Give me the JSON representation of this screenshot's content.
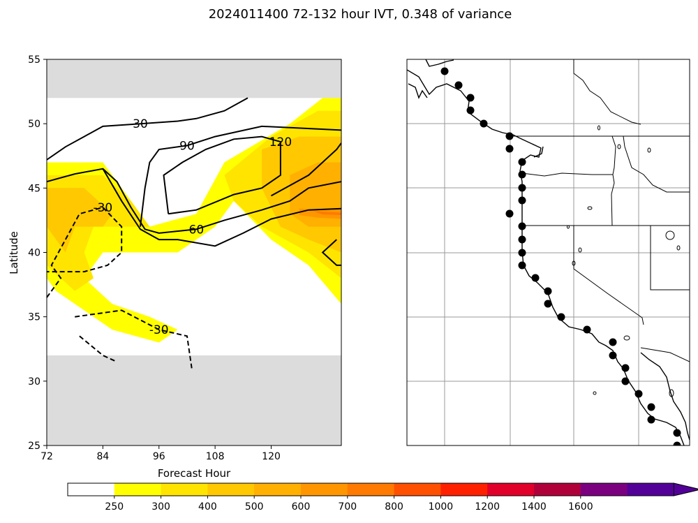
{
  "figure": {
    "title": "2024011400 72-132 hour IVT, 0.348 of variance"
  },
  "chart_data": [
    {
      "type": "contour",
      "xlabel": "Forecast Hour",
      "ylabel": "Latitude",
      "xlim": [
        72,
        135
      ],
      "ylim": [
        25,
        55
      ],
      "xticks": [
        "72",
        "84",
        "96",
        "108",
        "120"
      ],
      "yticks": [
        "25",
        "30",
        "35",
        "40",
        "45",
        "50",
        "55"
      ],
      "masked_regions": [
        {
          "lat_from": 52,
          "lat_to": 55,
          "color": "#dcdcdc"
        },
        {
          "lat_from": 25,
          "lat_to": 32,
          "color": "#dcdcdc"
        }
      ],
      "filled_ivt": [
        {
          "level": 250,
          "color": "#ffff00",
          "polygon": [
            [
              72,
              47
            ],
            [
              84,
              47
            ],
            [
              94,
              42
            ],
            [
              104,
              43
            ],
            [
              110,
              47
            ],
            [
              124,
              50
            ],
            [
              131,
              52
            ],
            [
              135,
              52
            ],
            [
              135,
              36
            ],
            [
              128,
              39
            ],
            [
              120,
              41
            ],
            [
              112,
              44
            ],
            [
              108,
              42
            ],
            [
              100,
              40
            ],
            [
              92,
              40
            ],
            [
              84,
              40
            ],
            [
              80,
              38
            ],
            [
              86,
              36
            ],
            [
              94,
              35
            ],
            [
              100,
              34
            ],
            [
              96,
              33
            ],
            [
              86,
              34
            ],
            [
              78,
              36
            ],
            [
              74,
              37
            ],
            [
              72,
              38
            ]
          ]
        },
        {
          "level": 300,
          "color": "#ffe400",
          "polygon": [
            [
              72,
              46
            ],
            [
              84,
              46
            ],
            [
              90,
              44
            ],
            [
              94,
              42
            ],
            [
              90,
              42
            ],
            [
              82,
              42
            ],
            [
              80,
              40
            ],
            [
              82,
              38
            ],
            [
              78,
              37
            ],
            [
              72,
              39
            ]
          ]
        },
        {
          "level": 300,
          "color": "#ffe400",
          "polygon": [
            [
              110,
              46
            ],
            [
              120,
              49
            ],
            [
              130,
              51
            ],
            [
              135,
              51
            ],
            [
              135,
              38
            ],
            [
              128,
              40
            ],
            [
              118,
              42
            ],
            [
              112,
              44
            ]
          ]
        },
        {
          "level": 400,
          "color": "#ffc800",
          "polygon": [
            [
              72,
              45
            ],
            [
              80,
              45
            ],
            [
              86,
              43
            ],
            [
              84,
              42
            ],
            [
              78,
              42
            ],
            [
              76,
              40
            ],
            [
              74,
              41
            ],
            [
              72,
              42
            ]
          ]
        },
        {
          "level": 400,
          "color": "#ffc800",
          "polygon": [
            [
              118,
              48
            ],
            [
              126,
              49
            ],
            [
              132,
              49
            ],
            [
              135,
              49
            ],
            [
              135,
              40
            ],
            [
              128,
              41
            ],
            [
              122,
              42
            ],
            [
              118,
              45
            ]
          ]
        },
        {
          "level": 500,
          "color": "#ffb000",
          "polygon": [
            [
              124,
              46
            ],
            [
              130,
              47
            ],
            [
              135,
              47
            ],
            [
              135,
              42
            ],
            [
              128,
              42
            ],
            [
              124,
              43
            ]
          ]
        },
        {
          "level": 600,
          "color": "#ff9600",
          "polygon": [
            [
              126,
              43.4
            ],
            [
              133,
              43.3
            ],
            [
              135,
              43.4
            ],
            [
              135,
              42.6
            ],
            [
              130,
              42.7
            ],
            [
              126,
              42.9
            ]
          ]
        },
        {
          "level": 700,
          "color": "#ff7a00",
          "polygon": [
            [
              129,
              43.2
            ],
            [
              135,
              43.1
            ],
            [
              135,
              42.9
            ],
            [
              131,
              42.95
            ]
          ]
        }
      ],
      "contours": [
        {
          "label": "30",
          "style": "solid",
          "points": [
            [
              72,
              47.2
            ],
            [
              76,
              48.2
            ],
            [
              80,
              49
            ],
            [
              84,
              49.8
            ],
            [
              92,
              50
            ],
            [
              100,
              50.2
            ],
            [
              104,
              50.4
            ],
            [
              110,
              51
            ],
            [
              115,
              52
            ]
          ]
        },
        {
          "label": "",
          "style": "solid",
          "points": [
            [
              72,
              45.5
            ],
            [
              78,
              46.1
            ],
            [
              84,
              46.5
            ],
            [
              88,
              44
            ],
            [
              92,
              41.8
            ],
            [
              96,
              41
            ],
            [
              100,
              41
            ],
            [
              108,
              40.5
            ],
            [
              114,
              41.5
            ],
            [
              120,
              42.6
            ],
            [
              128,
              43.3
            ],
            [
              135,
              43.4
            ]
          ]
        },
        {
          "label": "60",
          "style": "solid",
          "points": [
            [
              84,
              46.5
            ],
            [
              87,
              45.5
            ],
            [
              90,
              43.5
            ],
            [
              93,
              41.8
            ],
            [
              96,
              41.5
            ],
            [
              104,
              41.8
            ],
            [
              110,
              42.5
            ],
            [
              118,
              43.3
            ],
            [
              124,
              44
            ],
            [
              128,
              45
            ],
            [
              135,
              45.5
            ]
          ]
        },
        {
          "label": "90",
          "style": "solid",
          "points": [
            [
              92,
              42
            ],
            [
              93,
              45
            ],
            [
              94,
              47
            ],
            [
              96,
              48
            ],
            [
              102,
              48.3
            ],
            [
              108,
              49
            ],
            [
              118,
              49.8
            ],
            [
              124,
              49.7
            ],
            [
              135,
              49.5
            ]
          ]
        },
        {
          "label": "120",
          "style": "solid",
          "points": [
            [
              98,
              43
            ],
            [
              97,
              46
            ],
            [
              101,
              47
            ],
            [
              106,
              48
            ],
            [
              112,
              48.8
            ],
            [
              118,
              49
            ],
            [
              122,
              48.6
            ],
            [
              122,
              46
            ],
            [
              118,
              45
            ],
            [
              112,
              44.5
            ],
            [
              104,
              43.3
            ],
            [
              98,
              43
            ]
          ]
        },
        {
          "label": "",
          "style": "solid",
          "points": [
            [
              120,
              44.4
            ],
            [
              128,
              46
            ],
            [
              134,
              48
            ],
            [
              135,
              48.5
            ]
          ]
        },
        {
          "label": "",
          "style": "solid",
          "points": [
            [
              134,
              41
            ],
            [
              131,
              40
            ],
            [
              134,
              39
            ],
            [
              135,
              39
            ]
          ]
        },
        {
          "label": "-30",
          "style": "dashed",
          "points": [
            [
              72,
              36.5
            ],
            [
              75,
              38
            ],
            [
              73,
              39
            ],
            [
              76,
              41
            ],
            [
              79,
              43
            ],
            [
              84,
              43.5
            ],
            [
              88,
              42
            ],
            [
              88,
              40
            ],
            [
              85,
              39
            ],
            [
              80,
              38.5
            ],
            [
              72,
              38.5
            ]
          ]
        },
        {
          "label": "-30",
          "style": "dashed",
          "points": [
            [
              78,
              35
            ],
            [
              88,
              35.5
            ],
            [
              96,
              34
            ],
            [
              102,
              33.5
            ],
            [
              103,
              31
            ]
          ]
        },
        {
          "label": "",
          "style": "dashed",
          "points": [
            [
              79,
              33.5
            ],
            [
              84,
              32
            ],
            [
              87,
              31.5
            ]
          ]
        }
      ]
    },
    {
      "type": "map",
      "description_region": "west coast of North America",
      "gridlines": true,
      "station_markers": 27
    }
  ],
  "colorbar": {
    "ticks": [
      "250",
      "300",
      "400",
      "500",
      "600",
      "700",
      "800",
      "1000",
      "1200",
      "1400",
      "1600"
    ],
    "colors": [
      "#ffffff",
      "#ffff00",
      "#ffe400",
      "#ffc800",
      "#ffb000",
      "#ff9600",
      "#ff7a00",
      "#ff5000",
      "#ff2000",
      "#e0002a",
      "#b0003a",
      "#7a0080",
      "#520098"
    ]
  }
}
